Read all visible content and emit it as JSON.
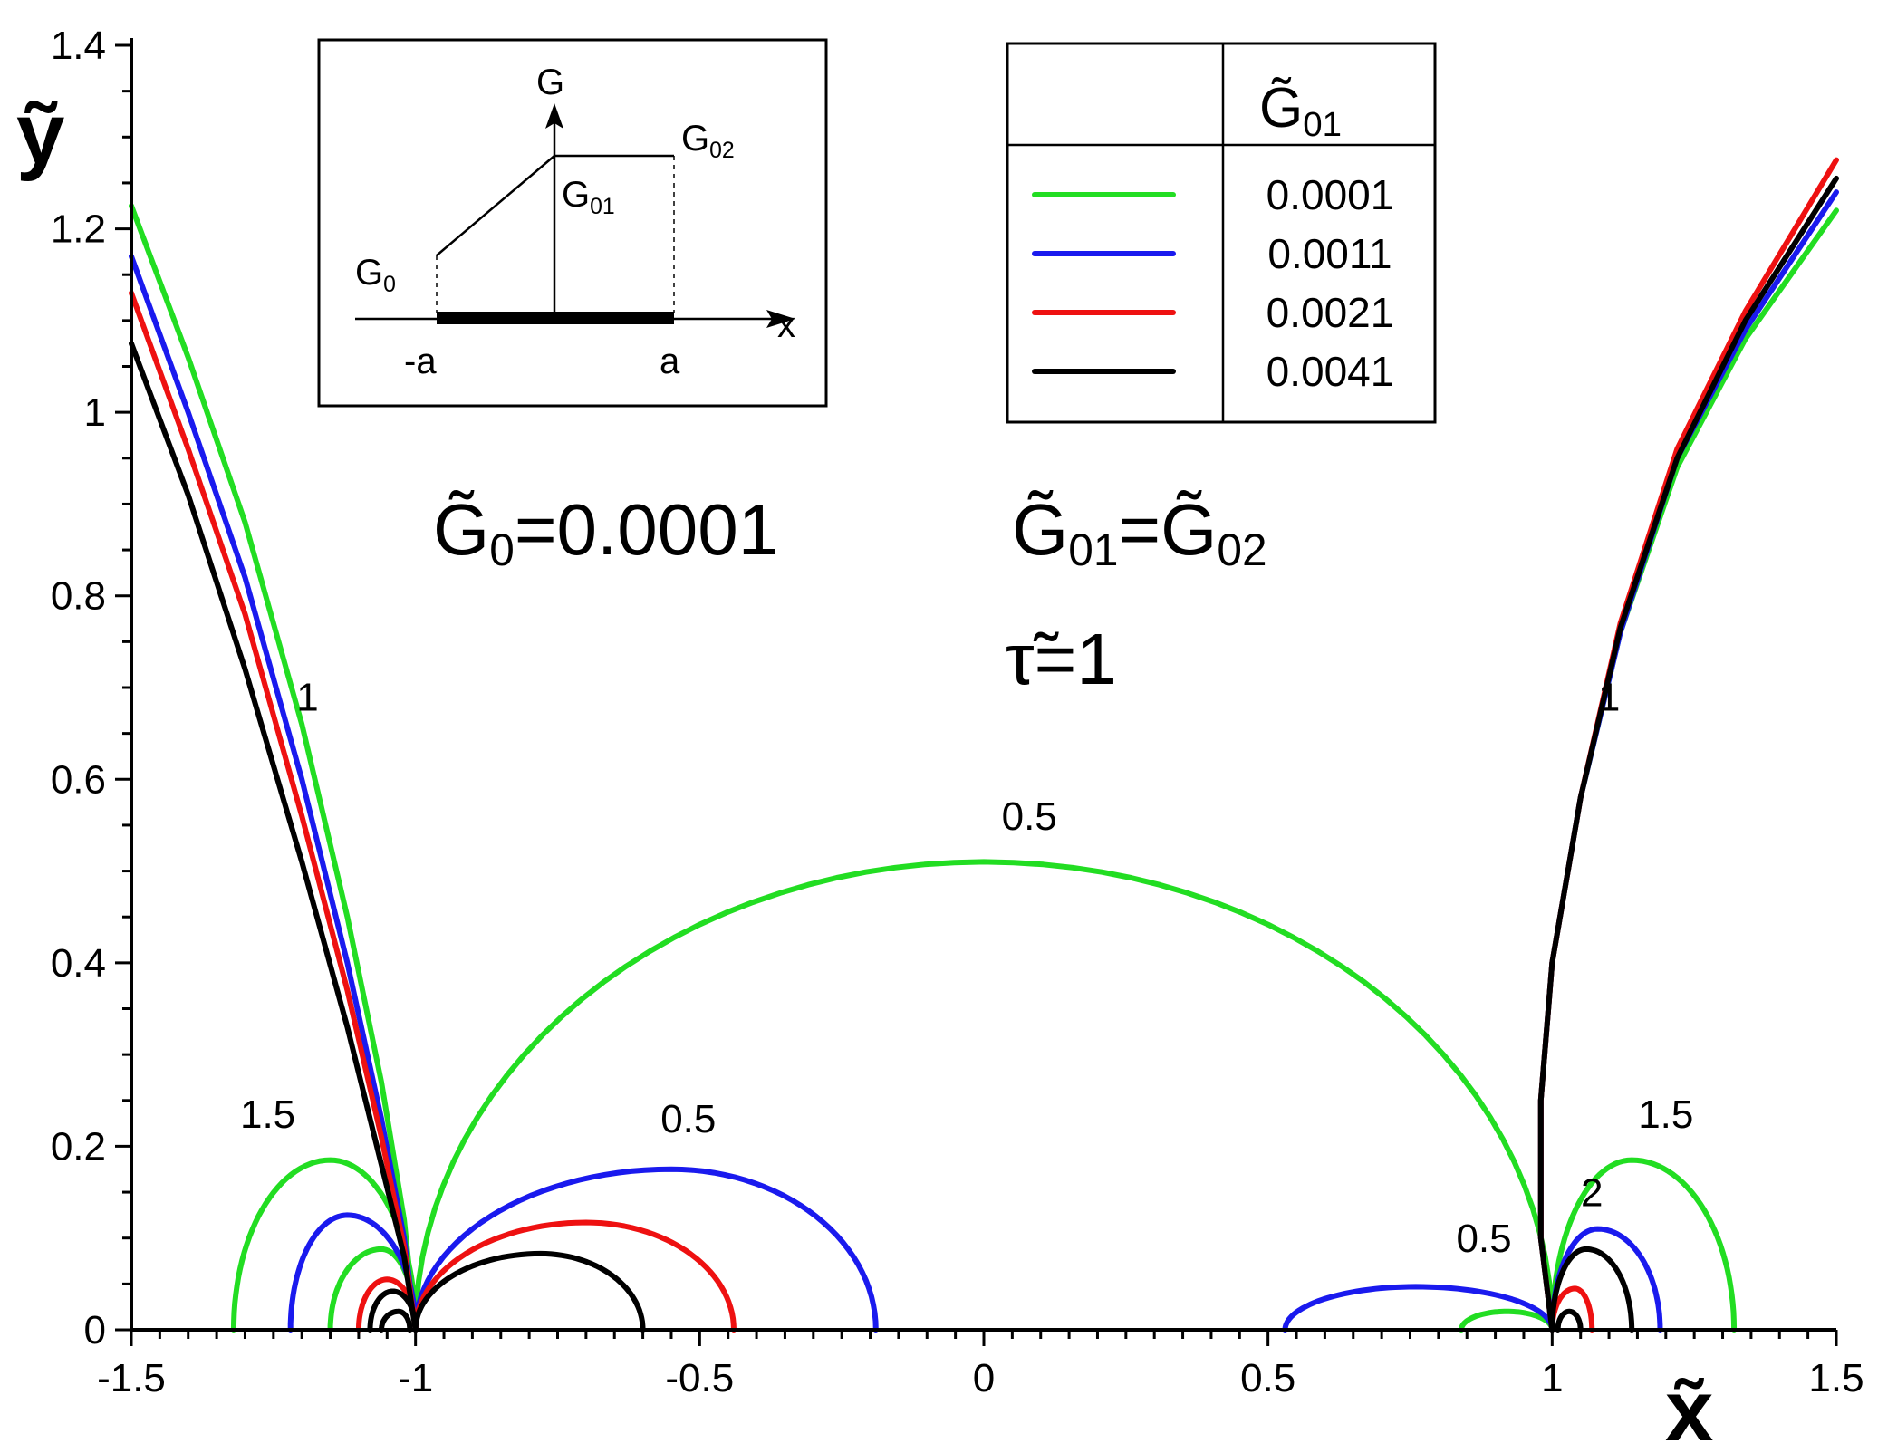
{
  "chart_data": {
    "type": "line",
    "title": "",
    "xlabel": "x̃",
    "ylabel": "ỹ",
    "xlim": [
      -1.5,
      1.5
    ],
    "ylim": [
      0,
      1.4
    ],
    "x_ticks": [
      "-1.5",
      "-1",
      "-0.5",
      "0",
      "0.5",
      "1",
      "1.5"
    ],
    "y_ticks": [
      "0",
      "0.2",
      "0.4",
      "0.6",
      "0.8",
      "1",
      "1.2",
      "1.4"
    ],
    "y_tick_values": [
      0,
      0.2,
      0.4,
      0.6,
      0.8,
      1,
      1.2,
      1.4
    ],
    "x_tick_values": [
      -1.5,
      -1,
      -0.5,
      0,
      0.5,
      1,
      1.5
    ],
    "legend": {
      "header": "G̃",
      "header_sub": "01",
      "entries": [
        {
          "label": "0.0001",
          "color": "#22dd22"
        },
        {
          "label": "0.0011",
          "color": "#1a1aee"
        },
        {
          "label": "0.0021",
          "color": "#ee1111"
        },
        {
          "label": "0.0041",
          "color": "#000000"
        }
      ]
    },
    "text_annotations": {
      "g0_main": "G̃",
      "g0_sub": "0",
      "g0_value": "=0.0001",
      "g01_main": "G̃",
      "g01_sub": "01",
      "eq": "=",
      "g02_main": "G̃",
      "g02_sub": "02",
      "tau": "τ̃=1"
    },
    "contour_labels": [
      {
        "text": "1",
        "x": -1.19,
        "y": 0.675
      },
      {
        "text": "1.5",
        "x": -1.26,
        "y": 0.22
      },
      {
        "text": "0.5",
        "x": -0.52,
        "y": 0.215
      },
      {
        "text": "0.5",
        "x": 0.08,
        "y": 0.545
      },
      {
        "text": "0.5",
        "x": 0.88,
        "y": 0.085
      },
      {
        "text": "1",
        "x": 1.1,
        "y": 0.675
      },
      {
        "text": "1.5",
        "x": 1.2,
        "y": 0.22
      },
      {
        "text": "2",
        "x": 1.07,
        "y": 0.135
      }
    ],
    "series": [
      {
        "name": "0.0001",
        "color": "#22dd22",
        "curves": [
          {
            "kind": "polyline",
            "points": [
              [
                -1.5,
                1.225
              ],
              [
                -1.4,
                1.06
              ],
              [
                -1.3,
                0.88
              ],
              [
                -1.2,
                0.66
              ],
              [
                -1.12,
                0.45
              ],
              [
                -1.06,
                0.27
              ],
              [
                -1.02,
                0.12
              ],
              [
                -1.0,
                0.0
              ]
            ]
          },
          {
            "kind": "arc",
            "x1": -1.32,
            "x2": -1.0,
            "peak": 0.185,
            "peak_x": -1.15
          },
          {
            "kind": "arc",
            "x1": -1.15,
            "x2": -1.0,
            "peak": 0.088,
            "peak_x": -1.06
          },
          {
            "kind": "arc",
            "x1": -1.0,
            "x2": 1.0,
            "peak": 0.51,
            "peak_x": 0.0
          },
          {
            "kind": "polyline",
            "points": [
              [
                1.0,
                0.0
              ],
              [
                0.98,
                0.1
              ],
              [
                0.98,
                0.25
              ],
              [
                1.0,
                0.4
              ],
              [
                1.05,
                0.58
              ],
              [
                1.12,
                0.76
              ],
              [
                1.22,
                0.94
              ],
              [
                1.34,
                1.08
              ],
              [
                1.5,
                1.22
              ]
            ]
          },
          {
            "kind": "arc",
            "x1": 1.0,
            "x2": 1.32,
            "peak": 0.185,
            "peak_x": 1.14
          },
          {
            "kind": "arc",
            "x1": 0.84,
            "x2": 1.0,
            "peak": 0.02,
            "peak_x": 0.92
          }
        ]
      },
      {
        "name": "0.0011",
        "color": "#1a1aee",
        "curves": [
          {
            "kind": "polyline",
            "points": [
              [
                -1.5,
                1.17
              ],
              [
                -1.4,
                1.0
              ],
              [
                -1.3,
                0.82
              ],
              [
                -1.2,
                0.6
              ],
              [
                -1.12,
                0.4
              ],
              [
                -1.06,
                0.23
              ],
              [
                -1.02,
                0.1
              ],
              [
                -1.0,
                0.0
              ]
            ]
          },
          {
            "kind": "arc",
            "x1": -1.22,
            "x2": -1.0,
            "peak": 0.125,
            "peak_x": -1.12
          },
          {
            "kind": "arc",
            "x1": -1.0,
            "x2": -0.19,
            "peak": 0.175,
            "peak_x": -0.55
          },
          {
            "kind": "arc",
            "x1": 0.53,
            "x2": 1.0,
            "peak": 0.047,
            "peak_x": 0.76
          },
          {
            "kind": "polyline",
            "points": [
              [
                1.0,
                0.0
              ],
              [
                0.98,
                0.1
              ],
              [
                0.98,
                0.25
              ],
              [
                1.0,
                0.4
              ],
              [
                1.05,
                0.58
              ],
              [
                1.12,
                0.76
              ],
              [
                1.22,
                0.95
              ],
              [
                1.34,
                1.09
              ],
              [
                1.5,
                1.24
              ]
            ]
          },
          {
            "kind": "arc",
            "x1": 1.0,
            "x2": 1.19,
            "peak": 0.11,
            "peak_x": 1.08
          }
        ]
      },
      {
        "name": "0.0021",
        "color": "#ee1111",
        "curves": [
          {
            "kind": "polyline",
            "points": [
              [
                -1.5,
                1.13
              ],
              [
                -1.4,
                0.96
              ],
              [
                -1.3,
                0.78
              ],
              [
                -1.2,
                0.56
              ],
              [
                -1.12,
                0.37
              ],
              [
                -1.06,
                0.21
              ],
              [
                -1.02,
                0.09
              ],
              [
                -1.0,
                0.0
              ]
            ]
          },
          {
            "kind": "arc",
            "x1": -1.1,
            "x2": -1.0,
            "peak": 0.055,
            "peak_x": -1.05
          },
          {
            "kind": "arc",
            "x1": -1.0,
            "x2": -0.44,
            "peak": 0.117,
            "peak_x": -0.7
          },
          {
            "kind": "polyline",
            "points": [
              [
                1.0,
                0.0
              ],
              [
                0.98,
                0.1
              ],
              [
                0.98,
                0.25
              ],
              [
                1.0,
                0.4
              ],
              [
                1.05,
                0.58
              ],
              [
                1.12,
                0.77
              ],
              [
                1.22,
                0.96
              ],
              [
                1.34,
                1.11
              ],
              [
                1.5,
                1.275
              ]
            ]
          },
          {
            "kind": "arc",
            "x1": 1.0,
            "x2": 1.07,
            "peak": 0.045,
            "peak_x": 1.04
          }
        ]
      },
      {
        "name": "0.0041",
        "color": "#000000",
        "curves": [
          {
            "kind": "polyline",
            "points": [
              [
                -1.5,
                1.075
              ],
              [
                -1.4,
                0.91
              ],
              [
                -1.3,
                0.72
              ],
              [
                -1.2,
                0.51
              ],
              [
                -1.12,
                0.33
              ],
              [
                -1.06,
                0.18
              ],
              [
                -1.02,
                0.08
              ],
              [
                -1.0,
                0.0
              ]
            ]
          },
          {
            "kind": "arc",
            "x1": -1.08,
            "x2": -1.0,
            "peak": 0.042,
            "peak_x": -1.04
          },
          {
            "kind": "arc",
            "x1": -1.06,
            "x2": -1.01,
            "peak": 0.02,
            "peak_x": -1.03
          },
          {
            "kind": "arc",
            "x1": -1.0,
            "x2": -0.6,
            "peak": 0.083,
            "peak_x": -0.78
          },
          {
            "kind": "polyline",
            "points": [
              [
                1.0,
                0.0
              ],
              [
                0.98,
                0.1
              ],
              [
                0.98,
                0.25
              ],
              [
                1.0,
                0.4
              ],
              [
                1.05,
                0.58
              ],
              [
                1.12,
                0.765
              ],
              [
                1.22,
                0.95
              ],
              [
                1.34,
                1.1
              ],
              [
                1.5,
                1.255
              ]
            ]
          },
          {
            "kind": "arc",
            "x1": 1.0,
            "x2": 1.14,
            "peak": 0.088,
            "peak_x": 1.06
          },
          {
            "kind": "arc",
            "x1": 1.01,
            "x2": 1.05,
            "peak": 0.02,
            "peak_x": 1.03
          }
        ]
      }
    ]
  },
  "inset": {
    "g_axis": "G",
    "x_axis": "x",
    "g0": "G",
    "g0_sub": "0",
    "g01": "G",
    "g01_sub": "01",
    "g02": "G",
    "g02_sub": "02",
    "minus_a": "-a",
    "a": "a"
  }
}
